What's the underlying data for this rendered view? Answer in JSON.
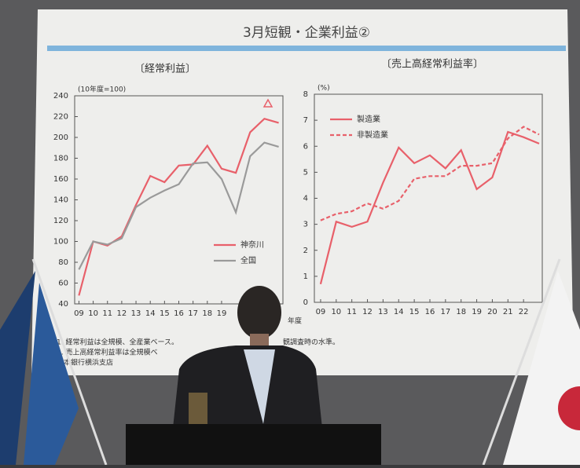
{
  "slide_title": "3月短観・企業利益②",
  "chart_data": [
    {
      "type": "line",
      "title": "〔経常利益〕",
      "y_label": "(10年度=100)",
      "x_label": "年度",
      "x": [
        9,
        10,
        11,
        12,
        13,
        14,
        15,
        16,
        17,
        18,
        19,
        20,
        21,
        22,
        23
      ],
      "xlim": [
        8.7,
        23.3
      ],
      "xticks": [
        {
          "value": 9,
          "label": "09"
        },
        10,
        11,
        12,
        13,
        14,
        15,
        16,
        17,
        18,
        19
      ],
      "ylim": [
        40,
        240
      ],
      "yticks": [
        40,
        60,
        80,
        100,
        120,
        140,
        160,
        180,
        200,
        220,
        240
      ],
      "legend": "bottom-right",
      "series": [
        {
          "name": "神奈川",
          "color": "#e8606a",
          "values": [
            48,
            100,
            96,
            105,
            135,
            163,
            157,
            173,
            174,
            192,
            170,
            166,
            205,
            218,
            214
          ]
        },
        {
          "name": "全国",
          "color": "#9a9a9a",
          "values": [
            73,
            100,
            97,
            103,
            133,
            142,
            149,
            155,
            175,
            176,
            160,
            128,
            182,
            195,
            191
          ]
        }
      ]
    },
    {
      "type": "line",
      "title": "〔売上高経常利益率〕",
      "y_label": "(%)",
      "x": [
        9,
        10,
        11,
        12,
        13,
        14,
        15,
        16,
        17,
        18,
        19,
        20,
        21,
        22,
        23
      ],
      "xlim": [
        8.6,
        23.2
      ],
      "xticks": [
        {
          "value": 9,
          "label": "09"
        },
        10,
        11,
        12,
        13,
        14,
        15,
        16,
        17,
        18,
        19,
        20,
        21,
        22
      ],
      "ylim": [
        0,
        8
      ],
      "yticks": [
        0,
        1,
        2,
        3,
        4,
        5,
        6,
        7,
        8
      ],
      "legend": "top-left",
      "series": [
        {
          "name": "製造業",
          "color": "#e8606a",
          "dash": false,
          "values": [
            0.7,
            3.1,
            2.9,
            3.1,
            4.6,
            5.95,
            5.35,
            5.65,
            5.15,
            5.85,
            4.35,
            4.8,
            6.55,
            6.35,
            6.1
          ]
        },
        {
          "name": "非製造業",
          "color": "#e8606a",
          "dash": true,
          "values": [
            3.15,
            3.4,
            3.5,
            3.8,
            3.6,
            3.9,
            4.75,
            4.85,
            4.85,
            5.25,
            5.25,
            5.35,
            6.3,
            6.75,
            6.45
          ]
        }
      ]
    }
  ],
  "notes": [
    "1. 経常利益は全規模、全産業ベース。",
    "観調査時の水準。",
    "2. 売上高経常利益率は全規模ベ",
    "日本銀行横浜支店"
  ]
}
